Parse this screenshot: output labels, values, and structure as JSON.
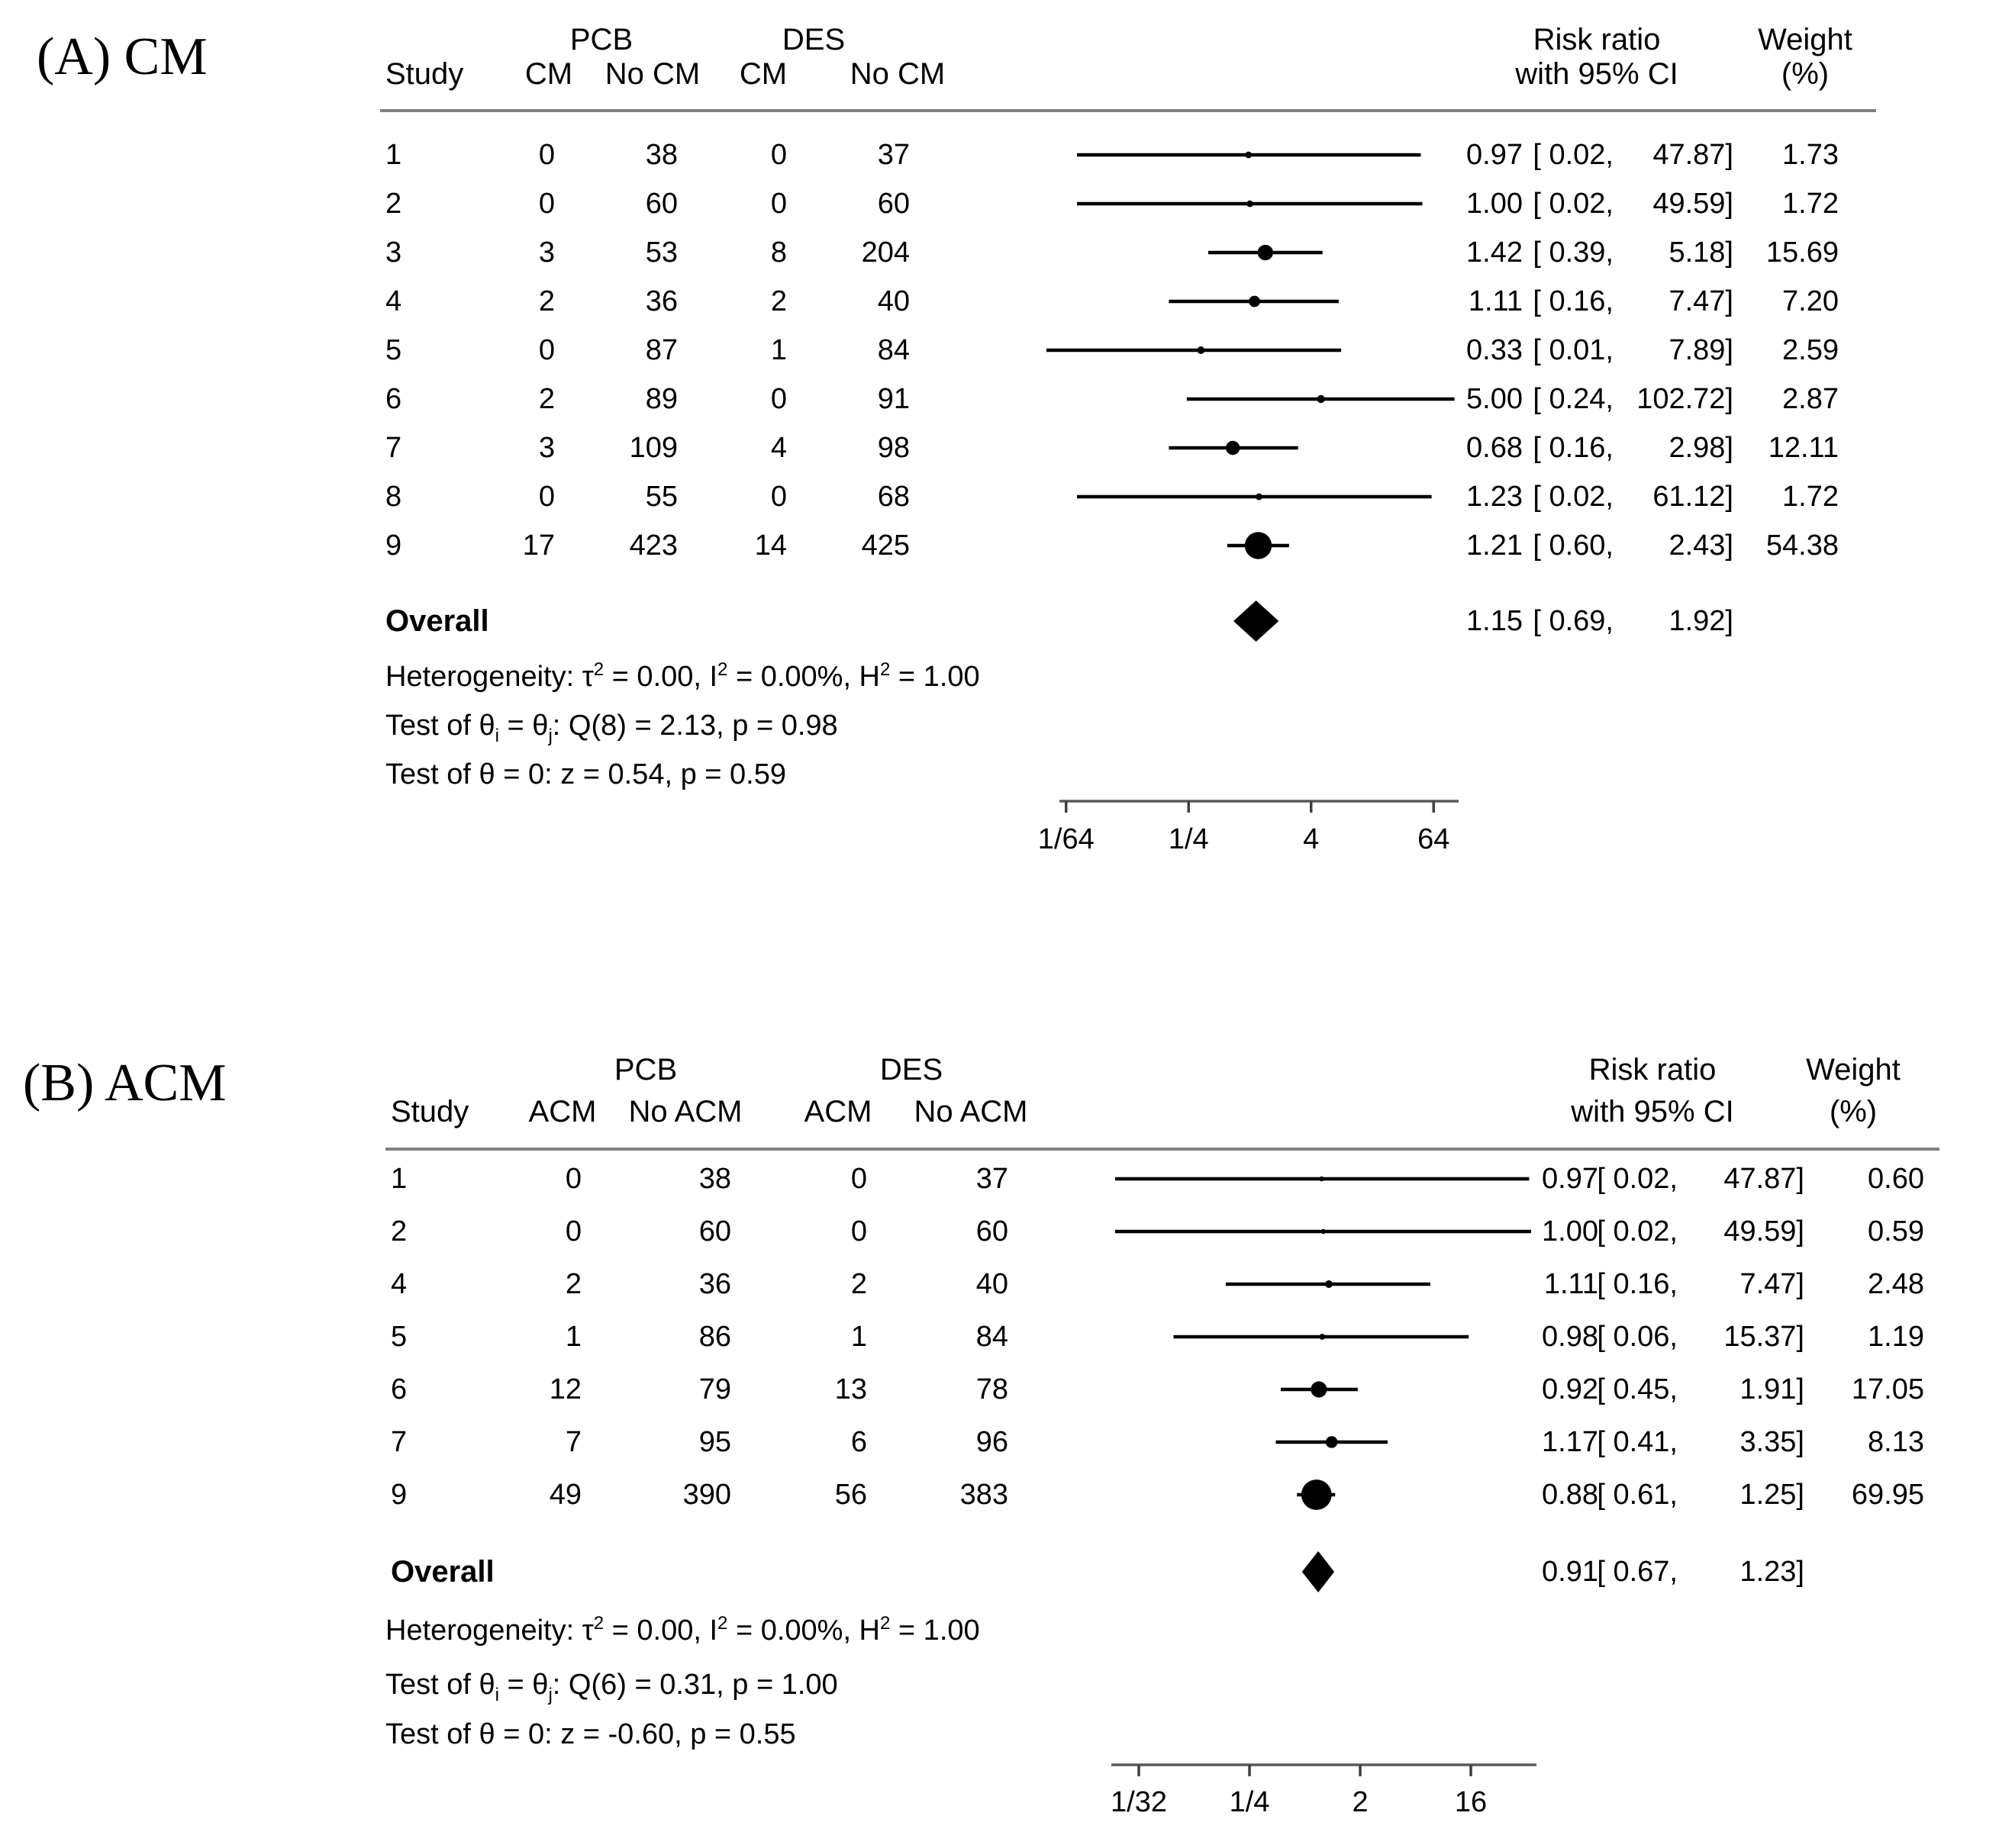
{
  "chart_data": [
    {
      "type": "forest",
      "panel_label": "(A) CM",
      "outcome": "CM",
      "headers": {
        "study": "Study",
        "group1": "PCB",
        "group2": "DES",
        "subcols": [
          "CM",
          "No CM",
          "CM",
          "No CM"
        ],
        "effect": [
          "Risk ratio",
          "with 95% CI"
        ],
        "weight": [
          "Weight",
          "(%)"
        ]
      },
      "x_scale": "log",
      "x_range": [
        0.015625,
        64
      ],
      "x_ticks": [
        {
          "label": "1/64",
          "value": 0.015625
        },
        {
          "label": "1/4",
          "value": 0.25
        },
        {
          "label": "4",
          "value": 4
        },
        {
          "label": "64",
          "value": 64
        }
      ],
      "studies": [
        {
          "study": "1",
          "counts": [
            0,
            38,
            0,
            37
          ],
          "rr": 0.97,
          "ci_low": 0.02,
          "ci_high": 47.87,
          "rr_parts": [
            "0.97",
            "[ 0.02,",
            "47.87]"
          ],
          "weight": 1.73,
          "weight_text": "1.73"
        },
        {
          "study": "2",
          "counts": [
            0,
            60,
            0,
            60
          ],
          "rr": 1.0,
          "ci_low": 0.02,
          "ci_high": 49.59,
          "rr_parts": [
            "1.00",
            "[ 0.02,",
            "49.59]"
          ],
          "weight": 1.72,
          "weight_text": "1.72"
        },
        {
          "study": "3",
          "counts": [
            3,
            53,
            8,
            204
          ],
          "rr": 1.42,
          "ci_low": 0.39,
          "ci_high": 5.18,
          "rr_parts": [
            "1.42",
            "[ 0.39,",
            "5.18]"
          ],
          "weight": 15.69,
          "weight_text": "15.69"
        },
        {
          "study": "4",
          "counts": [
            2,
            36,
            2,
            40
          ],
          "rr": 1.11,
          "ci_low": 0.16,
          "ci_high": 7.47,
          "rr_parts": [
            "1.11",
            "[ 0.16,",
            "7.47]"
          ],
          "weight": 7.2,
          "weight_text": "7.20"
        },
        {
          "study": "5",
          "counts": [
            0,
            87,
            1,
            84
          ],
          "rr": 0.33,
          "ci_low": 0.01,
          "ci_high": 7.89,
          "rr_parts": [
            "0.33",
            "[ 0.01,",
            "7.89]"
          ],
          "weight": 2.59,
          "weight_text": "2.59"
        },
        {
          "study": "6",
          "counts": [
            2,
            89,
            0,
            91
          ],
          "rr": 5.0,
          "ci_low": 0.24,
          "ci_high": 102.72,
          "rr_parts": [
            "5.00",
            "[ 0.24,",
            "102.72]"
          ],
          "weight": 2.87,
          "weight_text": "2.87"
        },
        {
          "study": "7",
          "counts": [
            3,
            109,
            4,
            98
          ],
          "rr": 0.68,
          "ci_low": 0.16,
          "ci_high": 2.98,
          "rr_parts": [
            "0.68",
            "[ 0.16,",
            "2.98]"
          ],
          "weight": 12.11,
          "weight_text": "12.11"
        },
        {
          "study": "8",
          "counts": [
            0,
            55,
            0,
            68
          ],
          "rr": 1.23,
          "ci_low": 0.02,
          "ci_high": 61.12,
          "rr_parts": [
            "1.23",
            "[ 0.02,",
            "61.12]"
          ],
          "weight": 1.72,
          "weight_text": "1.72"
        },
        {
          "study": "9",
          "counts": [
            17,
            423,
            14,
            425
          ],
          "rr": 1.21,
          "ci_low": 0.6,
          "ci_high": 2.43,
          "rr_parts": [
            "1.21",
            "[ 0.60,",
            "2.43]"
          ],
          "weight": 54.38,
          "weight_text": "54.38"
        }
      ],
      "overall": {
        "label": "Overall",
        "rr": 1.15,
        "ci_low": 0.69,
        "ci_high": 1.92,
        "rr_parts": [
          "1.15",
          "[ 0.69,",
          "1.92]"
        ]
      },
      "notes": [
        [
          {
            "t": "Heterogeneity: τ"
          },
          {
            "sup": "2"
          },
          {
            "t": " = 0.00, I"
          },
          {
            "sup": "2"
          },
          {
            "t": " = 0.00%, H"
          },
          {
            "sup": "2"
          },
          {
            "t": " = 1.00"
          }
        ],
        [
          {
            "t": "Test of θ"
          },
          {
            "sub": "i"
          },
          {
            "t": " = θ"
          },
          {
            "sub": "j"
          },
          {
            "t": ": Q(8) = 2.13, p = 0.98"
          }
        ],
        [
          {
            "t": "Test of θ = 0: z = 0.54, p = 0.59"
          }
        ]
      ]
    },
    {
      "type": "forest",
      "panel_label": "(B) ACM",
      "outcome": "ACM",
      "headers": {
        "study": "Study",
        "group1": "PCB",
        "group2": "DES",
        "subcols": [
          "ACM",
          "No ACM",
          "ACM",
          "No ACM"
        ],
        "effect": [
          "Risk ratio",
          "with 95% CI"
        ],
        "weight": [
          "Weight",
          "(%)"
        ]
      },
      "x_scale": "log",
      "x_range": [
        0.03125,
        16
      ],
      "x_ticks": [
        {
          "label": "1/32",
          "value": 0.03125
        },
        {
          "label": "1/4",
          "value": 0.25
        },
        {
          "label": "2",
          "value": 2
        },
        {
          "label": "16",
          "value": 16
        }
      ],
      "studies": [
        {
          "study": "1",
          "counts": [
            0,
            38,
            0,
            37
          ],
          "rr": 0.97,
          "ci_low": 0.02,
          "ci_high": 47.87,
          "rr_parts": [
            "0.97",
            "[ 0.02,",
            "47.87]"
          ],
          "weight": 0.6,
          "weight_text": "0.60"
        },
        {
          "study": "2",
          "counts": [
            0,
            60,
            0,
            60
          ],
          "rr": 1.0,
          "ci_low": 0.02,
          "ci_high": 49.59,
          "rr_parts": [
            "1.00",
            "[ 0.02,",
            "49.59]"
          ],
          "weight": 0.59,
          "weight_text": "0.59"
        },
        {
          "study": "4",
          "counts": [
            2,
            36,
            2,
            40
          ],
          "rr": 1.11,
          "ci_low": 0.16,
          "ci_high": 7.47,
          "rr_parts": [
            "1.11",
            "[ 0.16,",
            "7.47]"
          ],
          "weight": 2.48,
          "weight_text": "2.48"
        },
        {
          "study": "5",
          "counts": [
            1,
            86,
            1,
            84
          ],
          "rr": 0.98,
          "ci_low": 0.06,
          "ci_high": 15.37,
          "rr_parts": [
            "0.98",
            "[ 0.06,",
            "15.37]"
          ],
          "weight": 1.19,
          "weight_text": "1.19"
        },
        {
          "study": "6",
          "counts": [
            12,
            79,
            13,
            78
          ],
          "rr": 0.92,
          "ci_low": 0.45,
          "ci_high": 1.91,
          "rr_parts": [
            "0.92",
            "[ 0.45,",
            "1.91]"
          ],
          "weight": 17.05,
          "weight_text": "17.05"
        },
        {
          "study": "7",
          "counts": [
            7,
            95,
            6,
            96
          ],
          "rr": 1.17,
          "ci_low": 0.41,
          "ci_high": 3.35,
          "rr_parts": [
            "1.17",
            "[ 0.41,",
            "3.35]"
          ],
          "weight": 8.13,
          "weight_text": "8.13"
        },
        {
          "study": "9",
          "counts": [
            49,
            390,
            56,
            383
          ],
          "rr": 0.88,
          "ci_low": 0.61,
          "ci_high": 1.25,
          "rr_parts": [
            "0.88",
            "[ 0.61,",
            "1.25]"
          ],
          "weight": 69.95,
          "weight_text": "69.95"
        }
      ],
      "overall": {
        "label": "Overall",
        "rr": 0.91,
        "ci_low": 0.67,
        "ci_high": 1.23,
        "rr_parts": [
          "0.91",
          "[ 0.67,",
          "1.23]"
        ]
      },
      "notes": [
        [
          {
            "t": "Heterogeneity: τ"
          },
          {
            "sup": "2"
          },
          {
            "t": " = 0.00, I"
          },
          {
            "sup": "2"
          },
          {
            "t": " = 0.00%, H"
          },
          {
            "sup": "2"
          },
          {
            "t": " = 1.00"
          }
        ],
        [
          {
            "t": "Test of θ"
          },
          {
            "sub": "i"
          },
          {
            "t": " = θ"
          },
          {
            "sub": "j"
          },
          {
            "t": ": Q(6) = 0.31, p = 1.00"
          }
        ],
        [
          {
            "t": "Test of θ = 0: z = -0.60, p = 0.55"
          }
        ]
      ]
    }
  ],
  "colors": {
    "text": "#000000",
    "marker": "#000000",
    "rule": "#7f7f7f",
    "axis": "#5a5a5a"
  }
}
